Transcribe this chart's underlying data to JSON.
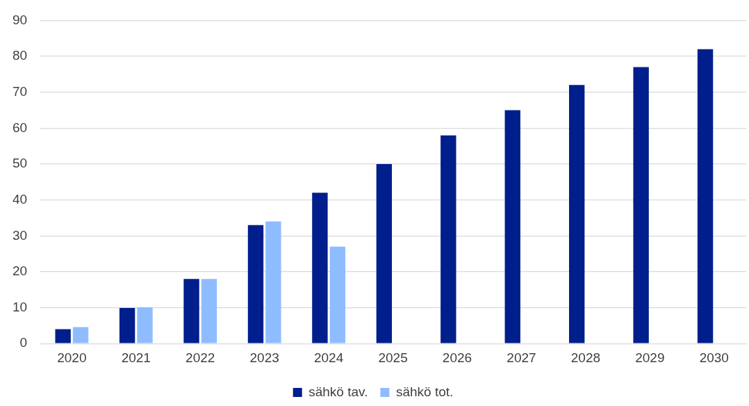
{
  "chart_data": {
    "type": "bar",
    "categories": [
      "2020",
      "2021",
      "2022",
      "2023",
      "2024",
      "2025",
      "2026",
      "2027",
      "2028",
      "2029",
      "2030"
    ],
    "series": [
      {
        "name": "sähkö tav.",
        "color": "#001e8c",
        "values": [
          4,
          9.9,
          18,
          33,
          42,
          50,
          58,
          65,
          72,
          77,
          82
        ]
      },
      {
        "name": "sähkö tot.",
        "color": "#8fbcff",
        "values": [
          4.6,
          10.1,
          18,
          34,
          27,
          null,
          null,
          null,
          null,
          null,
          null
        ]
      }
    ],
    "ylim": [
      0,
      90
    ],
    "yticks": [
      0,
      10,
      20,
      30,
      40,
      50,
      60,
      70,
      80,
      90
    ],
    "grid": "y",
    "legend": "bottom"
  }
}
